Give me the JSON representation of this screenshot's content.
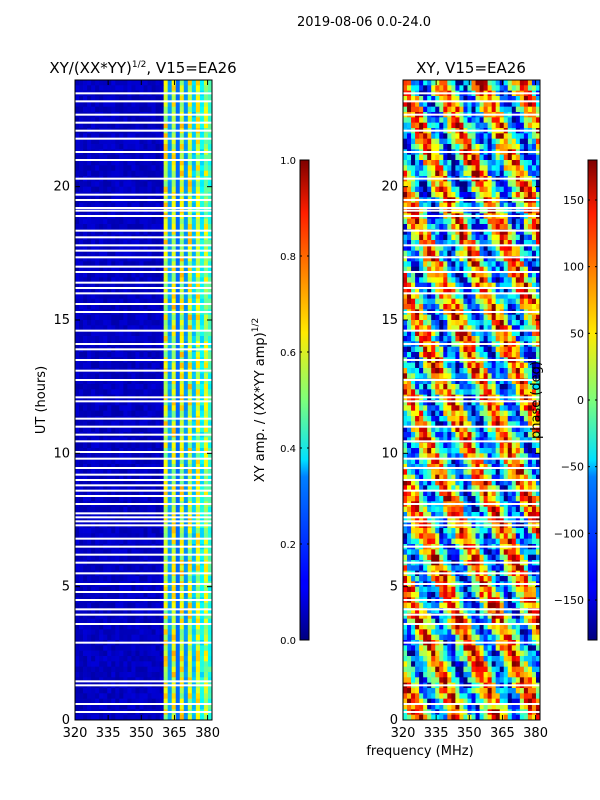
{
  "figure": {
    "suptitle": "2019-08-06 0.0-24.0",
    "xlabel": "frequency (MHz)",
    "ylabel": "UT (hours)"
  },
  "chart_data": [
    {
      "type": "heatmap",
      "name": "xy-normalized-amplitude",
      "title": "XY/(XX*YY)",
      "title_power": "1/2",
      "title_suffix": ", V15=EA26",
      "xlim": [
        320,
        382
      ],
      "ylim": [
        0,
        24
      ],
      "xticks": [
        320,
        335,
        350,
        365,
        380
      ],
      "yticks": [
        0,
        5,
        10,
        15,
        20
      ],
      "colormap": "jet",
      "description_band_center_mhz": 373,
      "gap_rows_ut": [
        0.3,
        0.6,
        1.3,
        1.45,
        2.9,
        3.6,
        3.95,
        4.15,
        4.5,
        4.8,
        5.1,
        5.5,
        5.9,
        6.2,
        6.5,
        6.8,
        7.3,
        7.45,
        7.6,
        7.75,
        8.1,
        8.4,
        8.6,
        8.8,
        9.0,
        9.2,
        9.45,
        9.8,
        10.05,
        10.45,
        10.7,
        11.0,
        11.3,
        11.95,
        12.1,
        12.75,
        13.1,
        13.5,
        13.9,
        14.1,
        14.6,
        15.3,
        15.6,
        16.0,
        16.2,
        16.4,
        16.8,
        17.0,
        17.35,
        17.6,
        17.8,
        18.1,
        18.35,
        18.9,
        19.1,
        19.2,
        19.5,
        19.7,
        20.3,
        21.0,
        21.3,
        21.8,
        22.1,
        22.4,
        22.7,
        23.2,
        23.5
      ],
      "colorbar": {
        "label": "XY amp. / (XX*YY amp)",
        "label_power": "1/2",
        "range": [
          0.0,
          1.0
        ],
        "tick_labels": [
          "0.0",
          "0.2",
          "0.4",
          "0.6",
          "0.8",
          "1.0"
        ]
      }
    },
    {
      "type": "heatmap",
      "name": "xy-phase",
      "title": "XY, V15=EA26",
      "xlim": [
        320,
        382
      ],
      "ylim": [
        0,
        24
      ],
      "xticks": [
        320,
        335,
        350,
        365,
        380
      ],
      "yticks": [
        0,
        5,
        10,
        15,
        20
      ],
      "colormap": "jet",
      "gap_rows_ut": [
        0.3,
        0.6,
        1.3,
        2.9,
        3.6,
        3.95,
        4.15,
        4.5,
        5.1,
        5.5,
        5.9,
        6.5,
        7.3,
        7.45,
        7.6,
        8.1,
        8.6,
        9.0,
        9.45,
        9.8,
        10.45,
        11.0,
        11.95,
        12.1,
        12.75,
        13.5,
        14.1,
        14.6,
        15.3,
        16.0,
        16.2,
        16.8,
        17.35,
        17.8,
        18.35,
        18.9,
        19.1,
        19.2,
        19.5,
        20.3,
        21.3,
        22.1,
        22.7,
        23.2,
        23.5
      ],
      "colorbar": {
        "label": "phase (deg)",
        "range": [
          -180,
          180
        ],
        "ticks": [
          -150,
          -100,
          -50,
          0,
          50,
          100,
          150
        ],
        "tick_labels": [
          "−150",
          "−100",
          "−50",
          "0",
          "50",
          "100",
          "150"
        ]
      }
    }
  ]
}
